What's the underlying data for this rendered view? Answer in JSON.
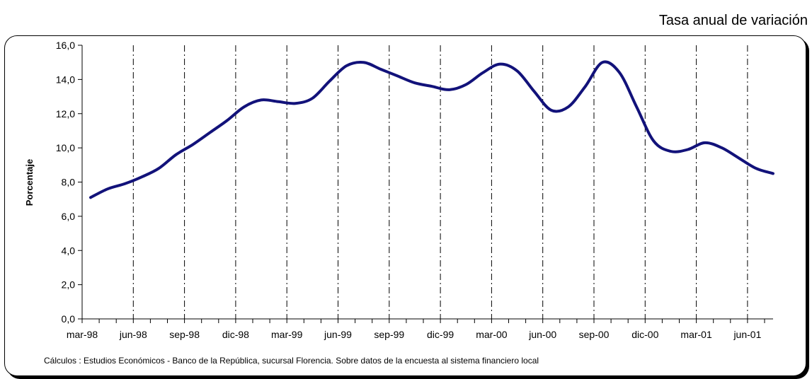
{
  "header": {
    "title": "Tasa anual de variación"
  },
  "footer": {
    "source": "Cálculos :  Estudios Económicos - Banco de la República, sucursal Florencia. Sobre datos de la encuesta al sistema financiero local"
  },
  "chart_data": {
    "type": "line",
    "title": "",
    "ylabel": "Porcentaje",
    "xlabel": "",
    "ylim": [
      0,
      16
    ],
    "yticks": [
      0,
      2,
      4,
      6,
      8,
      10,
      12,
      14,
      16
    ],
    "ytick_labels": [
      "0,0",
      "2,0",
      "4,0",
      "6,0",
      "8,0",
      "10,0",
      "12,0",
      "14,0",
      "16,0"
    ],
    "x_labels": [
      "mar-98",
      "jun-98",
      "sep-98",
      "dic-98",
      "mar-99",
      "jun-99",
      "sep-99",
      "dic-99",
      "mar-00",
      "jun-00",
      "sep-00",
      "dic-00",
      "mar-01",
      "jun-01"
    ],
    "x_label_month_index": [
      0,
      3,
      6,
      9,
      12,
      15,
      18,
      21,
      24,
      27,
      30,
      33,
      36,
      39
    ],
    "gridlines_vertical_dashed": true,
    "line_color": "#12127a",
    "series": [
      {
        "name": "",
        "months": [
          "mar-98",
          "abr-98",
          "may-98",
          "jun-98",
          "jul-98",
          "ago-98",
          "sep-98",
          "oct-98",
          "nov-98",
          "dic-98",
          "ene-99",
          "feb-99",
          "mar-99",
          "abr-99",
          "may-99",
          "jun-99",
          "jul-99",
          "ago-99",
          "sep-99",
          "oct-99",
          "nov-99",
          "dic-99",
          "ene-00",
          "feb-00",
          "mar-00",
          "abr-00",
          "may-00",
          "jun-00",
          "jul-00",
          "ago-00",
          "sep-00",
          "oct-00",
          "nov-00",
          "dic-00",
          "ene-01",
          "feb-01",
          "mar-01",
          "abr-01",
          "may-01",
          "jun-01",
          "jul-01"
        ],
        "values": [
          7.1,
          7.6,
          7.9,
          8.3,
          8.8,
          9.6,
          10.2,
          10.9,
          11.6,
          12.4,
          12.8,
          12.7,
          12.6,
          12.9,
          13.9,
          14.8,
          15.0,
          14.6,
          14.2,
          13.8,
          13.6,
          13.4,
          13.7,
          14.4,
          14.9,
          14.5,
          13.3,
          12.2,
          12.4,
          13.6,
          15.0,
          14.4,
          12.4,
          10.4,
          9.8,
          9.9,
          10.3,
          10.0,
          9.4,
          8.8,
          8.5
        ]
      }
    ]
  }
}
